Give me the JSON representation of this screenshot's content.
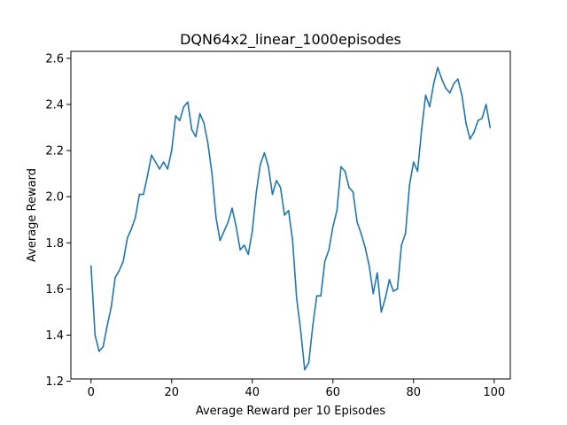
{
  "chart_data": {
    "type": "line",
    "title": "DQN64x2_linear_1000episodes",
    "xlabel": "Average Reward per 10 Episodes",
    "ylabel": "Average Reward",
    "xlim": [
      -5,
      104
    ],
    "ylim": [
      1.21,
      2.63
    ],
    "xticks": [
      0,
      20,
      40,
      60,
      80,
      100
    ],
    "yticks": [
      1.2,
      1.4,
      1.6,
      1.8,
      2.0,
      2.2,
      2.4,
      2.6
    ],
    "grid": false,
    "line_color": "#1f77b4",
    "series": [
      {
        "x": [
          0,
          1,
          2,
          3,
          4,
          5,
          6,
          7,
          8,
          9,
          10,
          11,
          12,
          13,
          14,
          15,
          16,
          17,
          18,
          19,
          20,
          21,
          22,
          23,
          24,
          25,
          26,
          27,
          28,
          29,
          30,
          31,
          32,
          33,
          34,
          35,
          36,
          37,
          38,
          39,
          40,
          41,
          42,
          43,
          44,
          45,
          46,
          47,
          48,
          49,
          50,
          51,
          52,
          53,
          54,
          55,
          56,
          57,
          58,
          59,
          60,
          61,
          62,
          63,
          64,
          65,
          66,
          67,
          68,
          69,
          70,
          71,
          72,
          73,
          74,
          75,
          76,
          77,
          78,
          79,
          80,
          81,
          82,
          83,
          84,
          85,
          86,
          87,
          88,
          89,
          90,
          91,
          92,
          93,
          94,
          95,
          96,
          97,
          98,
          99
        ],
        "values": [
          1.7,
          1.4,
          1.33,
          1.35,
          1.44,
          1.52,
          1.65,
          1.68,
          1.72,
          1.82,
          1.86,
          1.91,
          2.01,
          2.01,
          2.09,
          2.18,
          2.15,
          2.12,
          2.15,
          2.12,
          2.2,
          2.35,
          2.33,
          2.39,
          2.41,
          2.29,
          2.26,
          2.36,
          2.32,
          2.23,
          2.1,
          1.91,
          1.81,
          1.85,
          1.89,
          1.95,
          1.87,
          1.77,
          1.79,
          1.75,
          1.85,
          2.02,
          2.14,
          2.19,
          2.13,
          2.01,
          2.07,
          2.04,
          1.92,
          1.94,
          1.81,
          1.56,
          1.42,
          1.25,
          1.28,
          1.44,
          1.57,
          1.57,
          1.72,
          1.77,
          1.87,
          1.94,
          2.13,
          2.11,
          2.04,
          2.02,
          1.89,
          1.84,
          1.78,
          1.7,
          1.58,
          1.67,
          1.5,
          1.56,
          1.64,
          1.59,
          1.6,
          1.79,
          1.84,
          2.05,
          2.15,
          2.11,
          2.29,
          2.44,
          2.39,
          2.49,
          2.56,
          2.51,
          2.47,
          2.45,
          2.49,
          2.51,
          2.44,
          2.32,
          2.25,
          2.28,
          2.33,
          2.34,
          2.4,
          2.3
        ]
      }
    ]
  }
}
